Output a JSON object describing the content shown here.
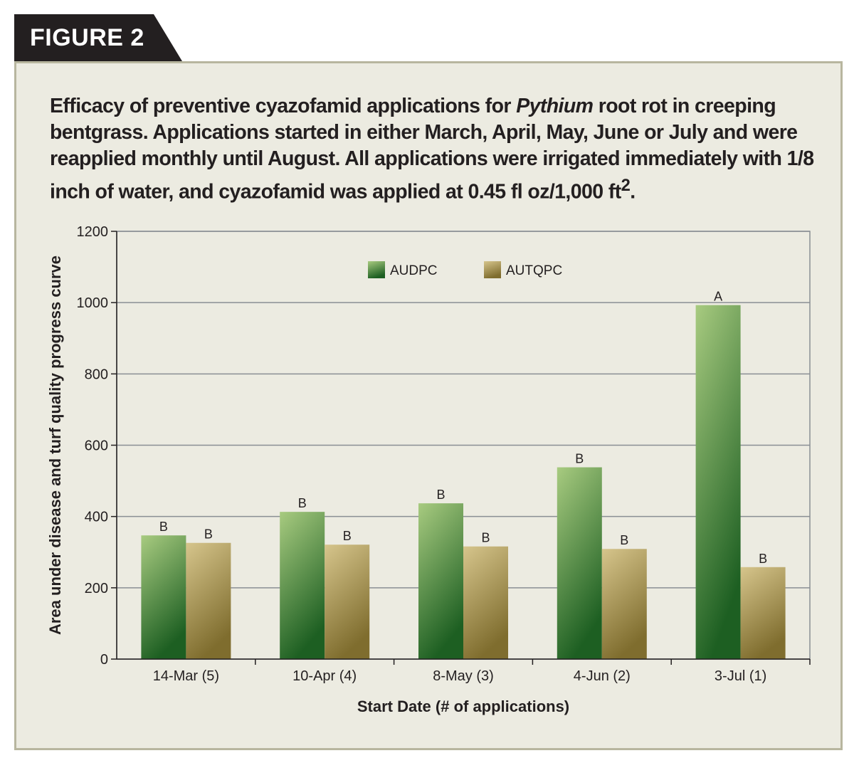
{
  "figure_label": "FIGURE 2",
  "caption": {
    "before_italic": "Efficacy of preventive cyazofamid applications for ",
    "italic": "Pythium",
    "middle": " root rot in creeping bentgrass. Applications started in either March, April, May, June or July and were reapplied monthly until August. All applications were irrigated immediately with 1/8 inch of water, and cyazofamid was applied at 0.45 fl oz/1,000 ft",
    "superscript": "2",
    "after": "."
  },
  "colors": {
    "audpc_light": "#a8cb80",
    "audpc_dark": "#1d5f22",
    "autqpc_light": "#d6c58c",
    "autqpc_dark": "#7f6d2e",
    "grid": "#8a8f94",
    "panel": "#ecebe1"
  },
  "chart_data": {
    "type": "bar",
    "title": "",
    "xlabel": "Start Date (# of applications)",
    "ylabel": "Area under disease and turf quality progress curve",
    "ylim": [
      0,
      1200
    ],
    "yticks": [
      0,
      200,
      400,
      600,
      800,
      1000,
      1200
    ],
    "grid": true,
    "legend_position": "top-center",
    "categories": [
      "14-Mar (5)",
      "10-Apr (4)",
      "8-May (3)",
      "4-Jun (2)",
      "3-Jul (1)"
    ],
    "series": [
      {
        "name": "AUDPC",
        "values": [
          347,
          413,
          437,
          538,
          993
        ],
        "labels": [
          "B",
          "B",
          "B",
          "B",
          "A"
        ]
      },
      {
        "name": "AUTQPC",
        "values": [
          326,
          321,
          316,
          309,
          258
        ],
        "labels": [
          "B",
          "B",
          "B",
          "B",
          "B"
        ]
      }
    ]
  }
}
